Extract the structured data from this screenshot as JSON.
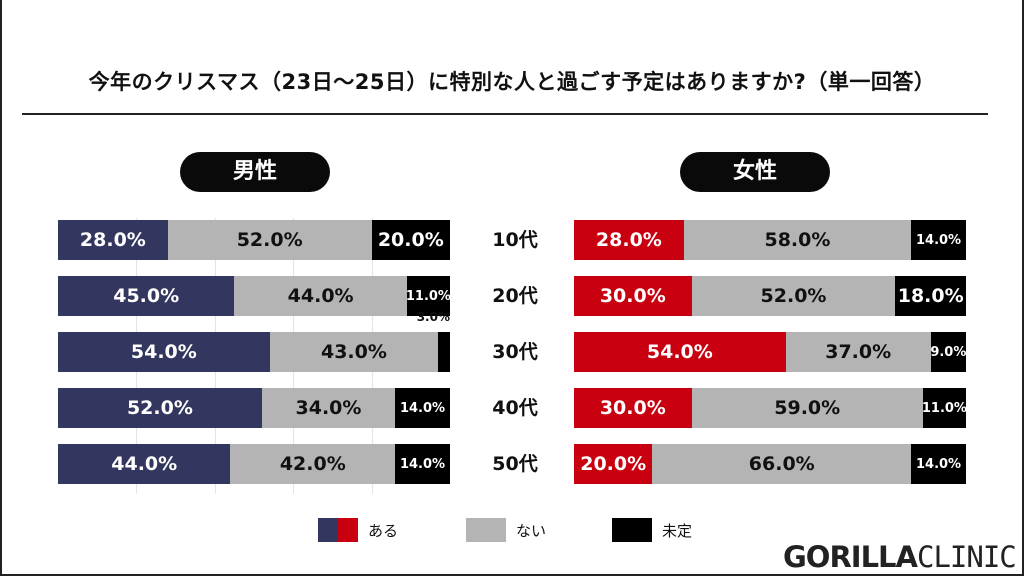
{
  "title": "今年のクリスマス（23日〜25日）に特別な人と過ごす予定はありますか?（単一回答）",
  "colors": {
    "male_yes": "#33375f",
    "female_yes": "#c8000f",
    "no": "#b4b4b4",
    "undecided": "#000000"
  },
  "chart_data": [
    {
      "type": "bar",
      "stacked": true,
      "orientation": "horizontal",
      "title": "男性",
      "categories": [
        "10代",
        "20代",
        "30代",
        "40代",
        "50代"
      ],
      "series": [
        {
          "name": "ある",
          "values": [
            28.0,
            45.0,
            54.0,
            52.0,
            44.0
          ]
        },
        {
          "name": "ない",
          "values": [
            52.0,
            44.0,
            43.0,
            34.0,
            42.0
          ]
        },
        {
          "name": "未定",
          "values": [
            20.0,
            11.0,
            3.0,
            14.0,
            14.0
          ]
        }
      ],
      "xlim": [
        0,
        100
      ],
      "unit": "%"
    },
    {
      "type": "bar",
      "stacked": true,
      "orientation": "horizontal",
      "title": "女性",
      "categories": [
        "10代",
        "20代",
        "30代",
        "40代",
        "50代"
      ],
      "series": [
        {
          "name": "ある",
          "values": [
            28.0,
            30.0,
            54.0,
            30.0,
            20.0
          ]
        },
        {
          "name": "ない",
          "values": [
            58.0,
            52.0,
            37.0,
            59.0,
            66.0
          ]
        },
        {
          "name": "未定",
          "values": [
            14.0,
            18.0,
            9.0,
            11.0,
            14.0
          ]
        }
      ],
      "xlim": [
        0,
        100
      ],
      "unit": "%"
    }
  ],
  "legend": [
    "ある",
    "ない",
    "未定"
  ],
  "logo": {
    "bold": "GORILLA",
    "light": "CLINIC"
  }
}
